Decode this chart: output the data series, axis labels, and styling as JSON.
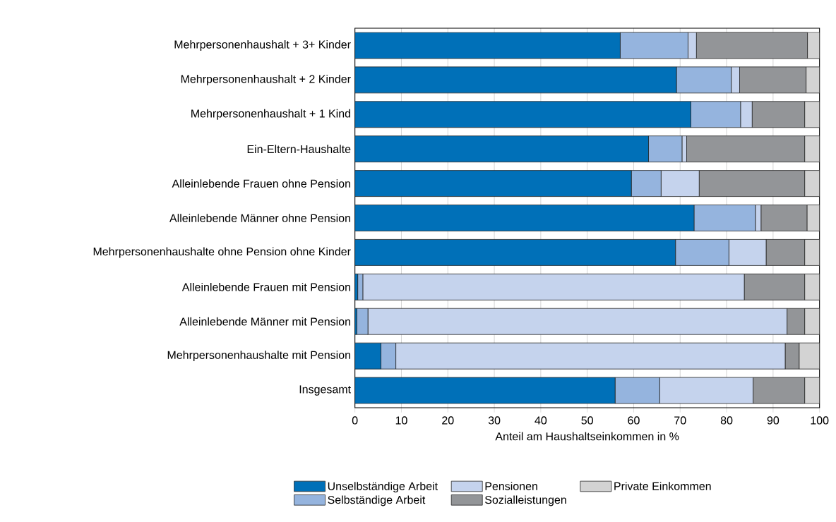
{
  "chart_data": {
    "type": "bar",
    "orientation": "horizontal",
    "stacked": true,
    "categories": [
      "Mehrpersonenhaushalt + 3+ Kinder",
      "Mehrpersonenhaushalt + 2 Kinder",
      "Mehrpersonenhaushalt + 1 Kind",
      "Ein-Eltern-Haushalte",
      "Alleinlebende Frauen ohne Pension",
      "Alleinlebende Männer ohne Pension",
      "Mehrpersonenhaushalte ohne Pension ohne Kinder",
      "Alleinlebende Frauen mit Pension",
      "Alleinlebende Männer mit Pension",
      "Mehrpersonenhaushalte mit Pension",
      "Insgesamt"
    ],
    "series": [
      {
        "name": "Unselbständige Arbeit",
        "color": "#0070b8",
        "values": [
          57.1,
          69.2,
          72.3,
          63.2,
          59.5,
          73.0,
          69.0,
          0.6,
          0.4,
          5.6,
          56.0
        ]
      },
      {
        "name": "Selbständige Arbeit",
        "color": "#95b4de",
        "values": [
          14.6,
          11.8,
          10.7,
          7.2,
          6.4,
          13.2,
          11.5,
          1.1,
          2.4,
          3.2,
          9.6
        ]
      },
      {
        "name": "Pensionen",
        "color": "#c5d3ed",
        "values": [
          1.8,
          1.8,
          2.5,
          1.0,
          8.2,
          1.2,
          8.0,
          82.1,
          90.2,
          83.8,
          20.1
        ]
      },
      {
        "name": "Sozialleistungen",
        "color": "#939598",
        "values": [
          23.9,
          14.3,
          11.3,
          25.4,
          22.7,
          9.9,
          8.3,
          13.0,
          3.8,
          3.0,
          11.1
        ]
      },
      {
        "name": "Private Einkommen",
        "color": "#d3d3d3",
        "values": [
          2.6,
          2.9,
          3.2,
          3.2,
          3.2,
          2.7,
          3.2,
          3.2,
          3.2,
          4.4,
          3.2
        ]
      }
    ],
    "xlim": [
      0,
      100
    ],
    "xticks": [
      0,
      10,
      20,
      30,
      40,
      50,
      60,
      70,
      80,
      90,
      100
    ],
    "xlabel": "Anteil am Haushaltseinkommen in %",
    "grid": "x",
    "legend": "bottom"
  }
}
